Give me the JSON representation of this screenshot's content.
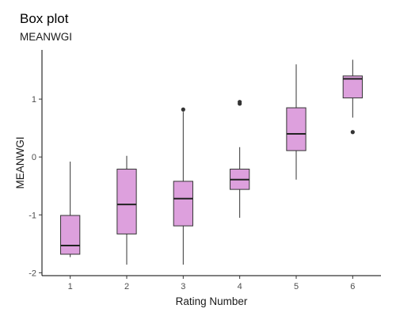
{
  "chart_data": {
    "type": "box",
    "title": "Box plot",
    "subtitle": "MEANWGI",
    "xlabel": "Rating Number",
    "ylabel": "MEANWGI",
    "categories": [
      "1",
      "2",
      "3",
      "4",
      "5",
      "6"
    ],
    "ylim": [
      -2.05,
      1.85
    ],
    "yticks": [
      -2,
      -1,
      0,
      1
    ],
    "grid": false,
    "legend": "none",
    "fill_color": "#dda0dd",
    "stroke_color": "#333333",
    "boxes": [
      {
        "category": "1",
        "whisker_low": -1.73,
        "q1": -1.68,
        "median": -1.53,
        "q3": -1.01,
        "whisker_high": -0.08,
        "outliers": []
      },
      {
        "category": "2",
        "whisker_low": -1.86,
        "q1": -1.33,
        "median": -0.82,
        "q3": -0.21,
        "whisker_high": 0.02,
        "outliers": []
      },
      {
        "category": "3",
        "whisker_low": -1.86,
        "q1": -1.19,
        "median": -0.72,
        "q3": -0.42,
        "whisker_high": 0.78,
        "outliers": [
          0.82
        ]
      },
      {
        "category": "4",
        "whisker_low": -1.05,
        "q1": -0.56,
        "median": -0.39,
        "q3": -0.21,
        "whisker_high": 0.17,
        "outliers": [
          0.92,
          0.95
        ]
      },
      {
        "category": "5",
        "whisker_low": -0.39,
        "q1": 0.11,
        "median": 0.4,
        "q3": 0.85,
        "whisker_high": 1.6,
        "outliers": []
      },
      {
        "category": "6",
        "whisker_low": 0.68,
        "q1": 1.02,
        "median": 1.35,
        "q3": 1.4,
        "whisker_high": 1.68,
        "outliers": [
          0.43
        ]
      }
    ]
  }
}
